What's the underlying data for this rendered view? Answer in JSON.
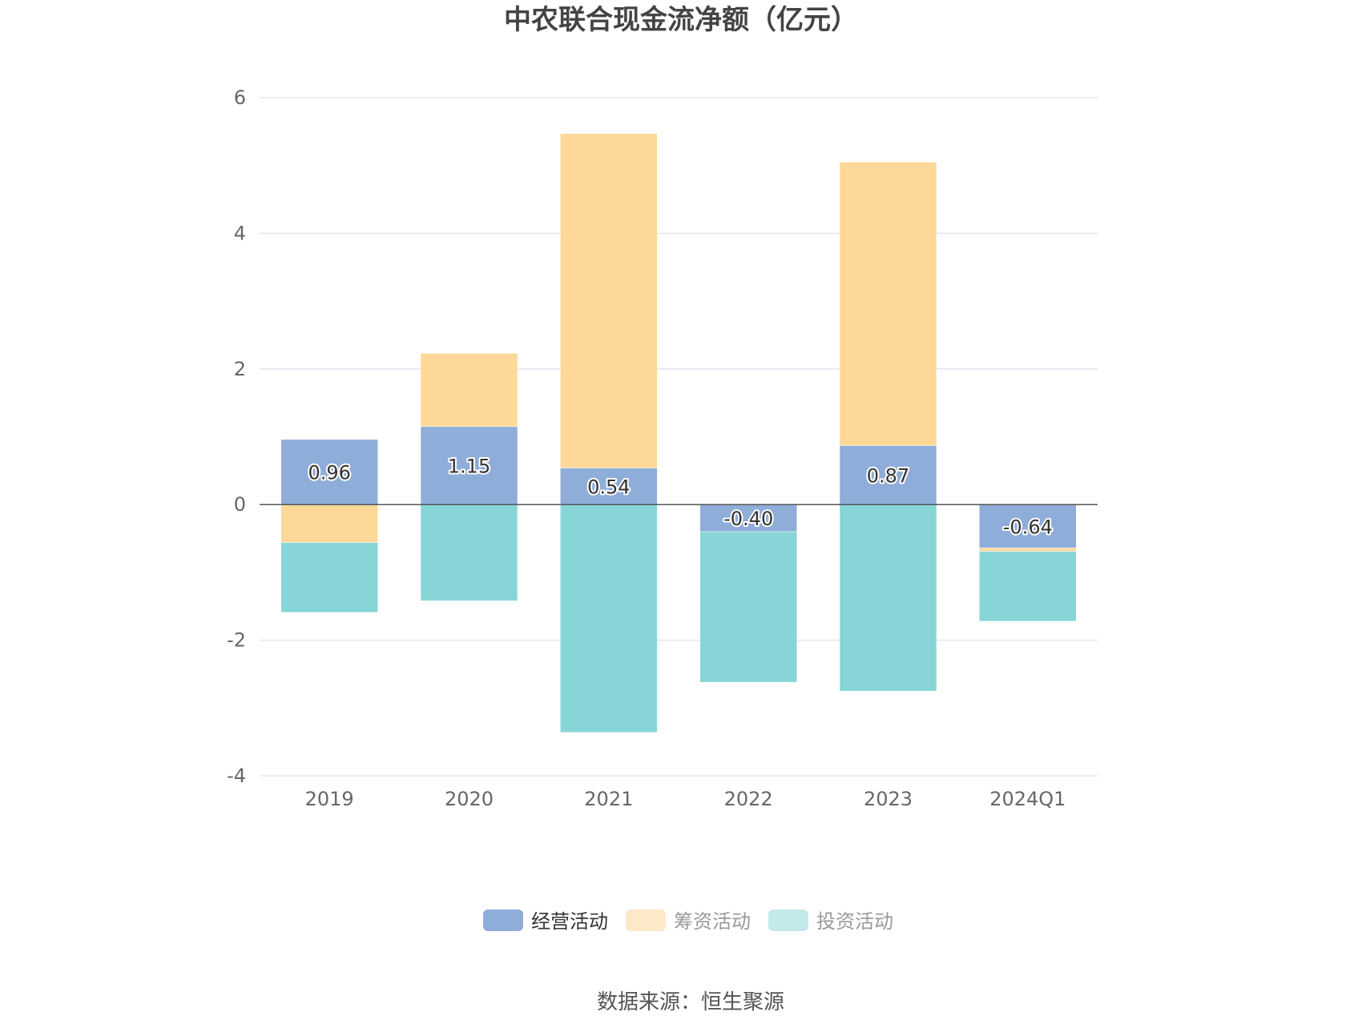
{
  "chart_data": {
    "type": "bar",
    "stacked": true,
    "title": "中农联合现金流净额（亿元）",
    "categories": [
      "2019",
      "2020",
      "2021",
      "2022",
      "2023",
      "2024Q1"
    ],
    "series": [
      {
        "name": "经营活动",
        "color": "#8fadd9",
        "values": [
          0.96,
          1.15,
          0.54,
          -0.4,
          0.87,
          -0.64
        ]
      },
      {
        "name": "筹资活动",
        "color": "#fdd899",
        "values": [
          -0.56,
          1.08,
          4.93,
          0.01,
          4.18,
          -0.05
        ]
      },
      {
        "name": "投资活动",
        "color": "#88d5d8",
        "values": [
          -1.03,
          -1.42,
          -3.36,
          -2.22,
          -2.75,
          -1.03
        ]
      }
    ],
    "data_labels": [
      "0.96",
      "1.15",
      "0.54",
      "-0.40",
      "0.87",
      "-0.64"
    ],
    "ylim": [
      -4,
      6
    ],
    "yticks": [
      6,
      4,
      2,
      0,
      -2,
      -4
    ],
    "xlabel": "",
    "ylabel": "",
    "grid": true,
    "legend_position": "bottom-center"
  },
  "legend": {
    "items": [
      {
        "label": "经营活动",
        "color": "#8fadd9",
        "text_color": "#333333"
      },
      {
        "label": "筹资活动",
        "color": "#fde8c7",
        "text_color": "#999999"
      },
      {
        "label": "投资活动",
        "color": "#c3e9ea",
        "text_color": "#999999"
      }
    ]
  },
  "source": {
    "text": "数据来源：恒生聚源"
  }
}
